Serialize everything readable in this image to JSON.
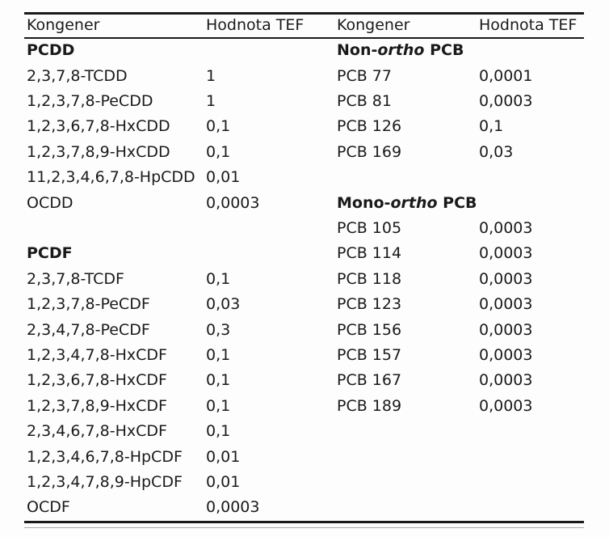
{
  "colors": {
    "background": "#fdfdfd",
    "text": "#1a1a1a",
    "rule": "#1a1a1a"
  },
  "table": {
    "headers": {
      "col1": "Kongener",
      "col2": "Hodnota TEF",
      "col3": "Kongener",
      "col4": "Hodnota TEF"
    },
    "rows": [
      {
        "left": {
          "name": "PCDD",
          "bold": true,
          "value": ""
        },
        "right": {
          "name_parts": [
            [
              "Non-",
              "b"
            ],
            [
              "ortho",
              "bi"
            ],
            [
              " PCB",
              "b"
            ]
          ],
          "value": ""
        }
      },
      {
        "left": {
          "name": "2,3,7,8-TCDD",
          "value": "1"
        },
        "right": {
          "name": "PCB 77",
          "value": "0,0001"
        }
      },
      {
        "left": {
          "name": "1,2,3,7,8-PeCDD",
          "value": "1"
        },
        "right": {
          "name": "PCB 81",
          "value": "0,0003"
        }
      },
      {
        "left": {
          "name": "1,2,3,6,7,8-HxCDD",
          "value": "0,1"
        },
        "right": {
          "name": "PCB 126",
          "value": "0,1"
        }
      },
      {
        "left": {
          "name": "1,2,3,7,8,9-HxCDD",
          "value": "0,1"
        },
        "right": {
          "name": "PCB 169",
          "value": "0,03"
        }
      },
      {
        "left": {
          "name": "11,2,3,4,6,7,8-HpCDD",
          "value": "0,01"
        },
        "right": {
          "name": "",
          "value": ""
        }
      },
      {
        "left": {
          "name": "OCDD",
          "value": "0,0003"
        },
        "right": {
          "name_parts": [
            [
              "Mono-",
              "b"
            ],
            [
              "ortho",
              "bi"
            ],
            [
              " PCB",
              "b"
            ]
          ],
          "value": ""
        }
      },
      {
        "left": {
          "name": "",
          "value": ""
        },
        "right": {
          "name": "PCB 105",
          "value": "0,0003"
        }
      },
      {
        "left": {
          "name": "PCDF",
          "bold": true,
          "value": ""
        },
        "right": {
          "name": "PCB 114",
          "value": "0,0003"
        }
      },
      {
        "left": {
          "name": "2,3,7,8-TCDF",
          "value": "0,1"
        },
        "right": {
          "name": "PCB 118",
          "value": "0,0003"
        }
      },
      {
        "left": {
          "name": "1,2,3,7,8-PeCDF",
          "value": "0,03"
        },
        "right": {
          "name": "PCB 123",
          "value": "0,0003"
        }
      },
      {
        "left": {
          "name": "2,3,4,7,8-PeCDF",
          "value": "0,3"
        },
        "right": {
          "name": "PCB 156",
          "value": "0,0003"
        }
      },
      {
        "left": {
          "name": "1,2,3,4,7,8-HxCDF",
          "value": "0,1"
        },
        "right": {
          "name": "PCB 157",
          "value": "0,0003"
        }
      },
      {
        "left": {
          "name": "1,2,3,6,7,8-HxCDF",
          "value": "0,1"
        },
        "right": {
          "name": "PCB 167",
          "value": "0,0003"
        }
      },
      {
        "left": {
          "name": "1,2,3,7,8,9-HxCDF",
          "value": "0,1"
        },
        "right": {
          "name": "PCB 189",
          "value": "0,0003"
        }
      },
      {
        "left": {
          "name": "2,3,4,6,7,8-HxCDF",
          "value": "0,1"
        },
        "right": {
          "name": "",
          "value": ""
        }
      },
      {
        "left": {
          "name": "1,2,3,4,6,7,8-HpCDF",
          "value": "0,01"
        },
        "right": {
          "name": "",
          "value": ""
        }
      },
      {
        "left": {
          "name": "1,2,3,4,7,8,9-HpCDF",
          "value": "0,01"
        },
        "right": {
          "name": "",
          "value": ""
        }
      },
      {
        "left": {
          "name": "OCDF",
          "value": "0,0003"
        },
        "right": {
          "name": "",
          "value": ""
        }
      }
    ]
  }
}
